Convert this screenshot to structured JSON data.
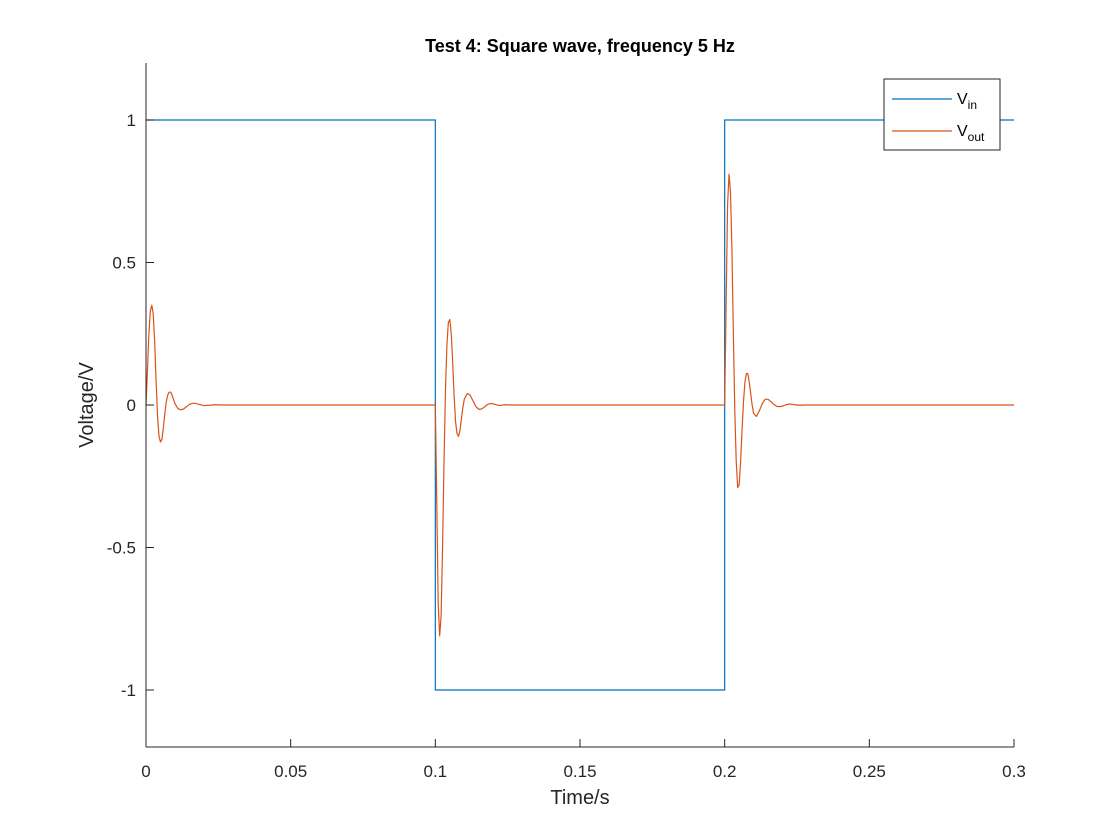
{
  "chart_data": {
    "type": "line",
    "title": "Test 4: Square wave, frequency 5 Hz",
    "xlabel": "Time/s",
    "ylabel": "Voltage/V",
    "xlim": [
      0,
      0.3
    ],
    "ylim": [
      -1.2,
      1.2
    ],
    "xticks": [
      0,
      0.05,
      0.1,
      0.15,
      0.2,
      0.25,
      0.3
    ],
    "xtick_labels": [
      "0",
      "0.05",
      "0.1",
      "0.15",
      "0.2",
      "0.25",
      "0.3"
    ],
    "yticks": [
      -1,
      -0.5,
      0,
      0.5,
      1
    ],
    "ytick_labels": [
      "-1",
      "-0.5",
      "0",
      "0.5",
      "1"
    ],
    "grid": false,
    "legend_position": "top-right",
    "series": [
      {
        "name": "V_in",
        "legend_main": "V",
        "legend_sub": "in",
        "color": "#0072BD",
        "x": [
          0,
          0.1,
          0.1,
          0.2,
          0.2,
          0.3
        ],
        "y": [
          1,
          1,
          -1,
          -1,
          1,
          1
        ]
      },
      {
        "name": "V_out",
        "legend_main": "V",
        "legend_sub": "out",
        "color": "#D95319",
        "x": [
          0,
          0.0005,
          0.001,
          0.0015,
          0.002,
          0.0025,
          0.003,
          0.0035,
          0.004,
          0.0045,
          0.005,
          0.0055,
          0.006,
          0.0065,
          0.007,
          0.0075,
          0.008,
          0.0085,
          0.009,
          0.0095,
          0.01,
          0.011,
          0.012,
          0.013,
          0.014,
          0.015,
          0.016,
          0.017,
          0.018,
          0.02,
          0.022,
          0.024,
          0.026,
          0.028,
          0.03,
          0.1,
          0.1005,
          0.101,
          0.1015,
          0.102,
          0.1025,
          0.103,
          0.1035,
          0.104,
          0.1045,
          0.105,
          0.1055,
          0.106,
          0.1065,
          0.107,
          0.1075,
          0.108,
          0.1085,
          0.109,
          0.1095,
          0.11,
          0.111,
          0.112,
          0.113,
          0.114,
          0.115,
          0.116,
          0.117,
          0.118,
          0.119,
          0.12,
          0.122,
          0.124,
          0.126,
          0.128,
          0.13,
          0.2,
          0.2005,
          0.201,
          0.2015,
          0.202,
          0.2025,
          0.203,
          0.2035,
          0.204,
          0.2045,
          0.205,
          0.2055,
          0.206,
          0.2065,
          0.207,
          0.2075,
          0.208,
          0.2085,
          0.209,
          0.2095,
          0.21,
          0.211,
          0.212,
          0.213,
          0.214,
          0.215,
          0.216,
          0.217,
          0.218,
          0.219,
          0.22,
          0.221,
          0.222,
          0.223,
          0.224,
          0.226,
          0.228,
          0.23,
          0.3
        ],
        "y": [
          0,
          0.12,
          0.25,
          0.33,
          0.35,
          0.32,
          0.22,
          0.08,
          -0.04,
          -0.11,
          -0.13,
          -0.12,
          -0.08,
          -0.03,
          0.01,
          0.035,
          0.045,
          0.045,
          0.035,
          0.02,
          0.005,
          -0.012,
          -0.017,
          -0.014,
          -0.006,
          0.002,
          0.006,
          0.006,
          0.003,
          -0.002,
          -0.001,
          0.001,
          0,
          0,
          0,
          0,
          -0.35,
          -0.7,
          -0.81,
          -0.74,
          -0.5,
          -0.2,
          0.05,
          0.21,
          0.29,
          0.3,
          0.25,
          0.15,
          0.03,
          -0.06,
          -0.1,
          -0.11,
          -0.09,
          -0.05,
          -0.01,
          0.02,
          0.04,
          0.035,
          0.015,
          -0.005,
          -0.015,
          -0.014,
          -0.007,
          0.002,
          0.005,
          0.004,
          -0.002,
          0.001,
          0,
          0,
          0,
          0,
          0.35,
          0.7,
          0.81,
          0.75,
          0.55,
          0.25,
          -0.02,
          -0.2,
          -0.29,
          -0.28,
          -0.2,
          -0.09,
          0.01,
          0.08,
          0.11,
          0.11,
          0.08,
          0.04,
          0,
          -0.03,
          -0.04,
          -0.02,
          0.005,
          0.02,
          0.02,
          0.012,
          0.002,
          -0.005,
          -0.006,
          -0.004,
          0,
          0.003,
          0.003,
          0.001,
          -0.001,
          0,
          0,
          0
        ]
      }
    ]
  }
}
